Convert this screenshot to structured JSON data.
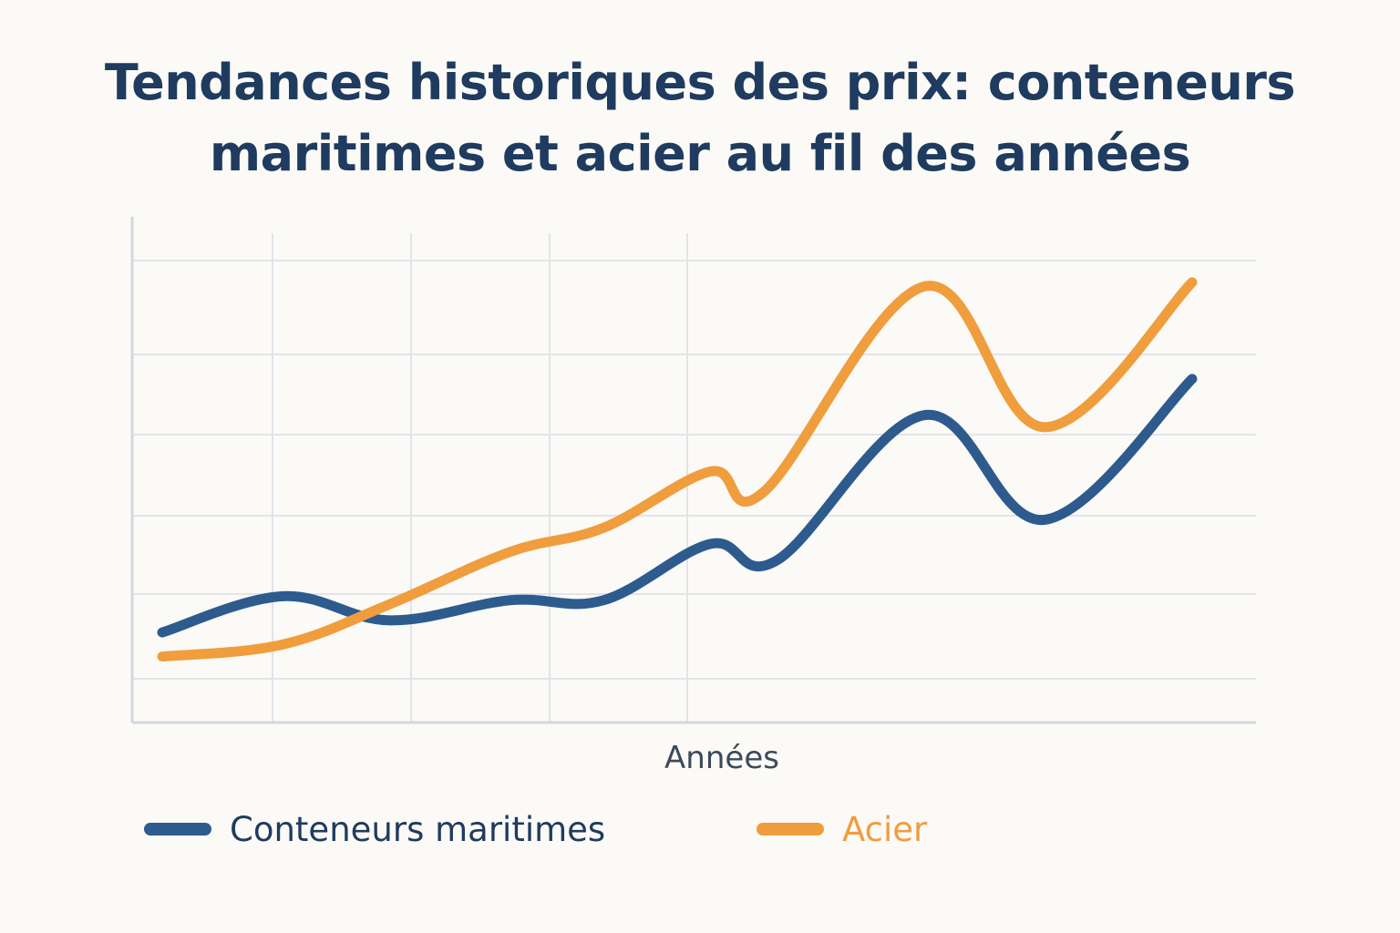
{
  "chart_data": {
    "type": "line",
    "title_lines": [
      "Tendances historiques des prix: conteneurs",
      "maritimes et acier au fil des années"
    ],
    "xlabel": "Années",
    "ylabel": "",
    "grid": true,
    "legend_position": "bottom-left",
    "xlim": [
      0,
      8
    ],
    "ylim": [
      0,
      6
    ],
    "series": [
      {
        "name": "Conteneurs maritimes",
        "color": "#2e5b8e",
        "x": [
          0,
          0.9,
          1.7,
          2.6,
          3.3,
          4.1,
          4.6,
          5.7,
          6.6,
          7.7
        ],
        "y": [
          0.95,
          1.4,
          1.1,
          1.35,
          1.35,
          2.05,
          1.85,
          3.65,
          2.35,
          4.1
        ]
      },
      {
        "name": "Acier",
        "color": "#f09d3e",
        "x": [
          0,
          0.9,
          1.7,
          2.6,
          3.3,
          4.1,
          4.5,
          5.7,
          6.6,
          7.7
        ],
        "y": [
          0.65,
          0.8,
          1.3,
          1.95,
          2.25,
          2.95,
          2.7,
          5.25,
          3.5,
          5.3
        ]
      }
    ]
  },
  "colors": {
    "title": "#1f3b5f",
    "grid": "#e1e4ea",
    "axis": "#d3d7de",
    "xlabel": "#3c4a5c",
    "background": "#fbfaf6"
  }
}
